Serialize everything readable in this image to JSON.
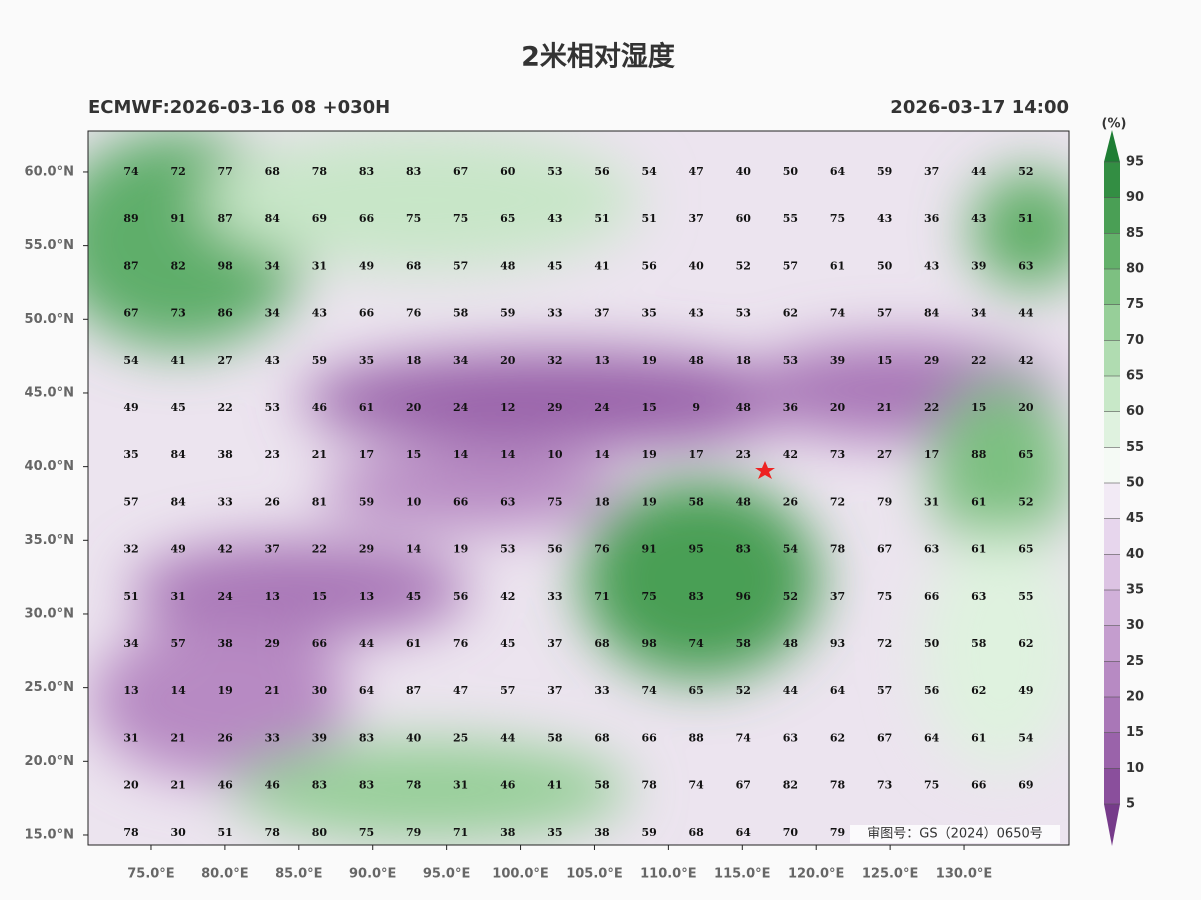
{
  "header": {
    "title": "2米相对湿度",
    "left": "ECMWF:2026-03-16 08 +030H",
    "right": "2026-03-17 14:00"
  },
  "map": {
    "xlim": [
      70.74,
      137.1
    ],
    "ylim": [
      14.32,
      62.78
    ],
    "xticks": [
      {
        "value": 75,
        "label": "75.0°E"
      },
      {
        "value": 80,
        "label": "80.0°E"
      },
      {
        "value": 85,
        "label": "85.0°E"
      },
      {
        "value": 90,
        "label": "90.0°E"
      },
      {
        "value": 95,
        "label": "95.0°E"
      },
      {
        "value": 100,
        "label": "100.0°E"
      },
      {
        "value": 105,
        "label": "105.0°E"
      },
      {
        "value": 110,
        "label": "110.0°E"
      },
      {
        "value": 115,
        "label": "115.0°E"
      },
      {
        "value": 120,
        "label": "120.0°E"
      },
      {
        "value": 125,
        "label": "125.0°E"
      },
      {
        "value": 130,
        "label": "130.0°E"
      }
    ],
    "yticks": [
      {
        "value": 60,
        "label": "60.0°N"
      },
      {
        "value": 55,
        "label": "55.0°N"
      },
      {
        "value": 50,
        "label": "50.0°N"
      },
      {
        "value": 45,
        "label": "45.0°N"
      },
      {
        "value": 40,
        "label": "40.0°N"
      },
      {
        "value": 35,
        "label": "35.0°N"
      },
      {
        "value": 30,
        "label": "30.0°N"
      },
      {
        "value": 25,
        "label": "25.0°N"
      },
      {
        "value": 20,
        "label": "20.0°N"
      },
      {
        "value": 15,
        "label": "15.0°N"
      }
    ],
    "grid": [
      [
        74,
        72,
        77,
        68,
        78,
        83,
        83,
        67,
        60,
        53,
        56,
        54,
        47,
        40,
        50,
        64,
        59,
        37,
        44,
        52
      ],
      [
        89,
        91,
        87,
        84,
        69,
        66,
        75,
        75,
        65,
        43,
        51,
        51,
        37,
        60,
        55,
        75,
        43,
        36,
        43,
        51
      ],
      [
        87,
        82,
        98,
        34,
        31,
        49,
        68,
        57,
        48,
        45,
        41,
        56,
        40,
        52,
        57,
        61,
        50,
        43,
        39,
        63
      ],
      [
        67,
        73,
        86,
        34,
        43,
        66,
        76,
        58,
        59,
        33,
        37,
        35,
        43,
        53,
        62,
        74,
        57,
        84,
        34,
        44
      ],
      [
        54,
        41,
        27,
        43,
        59,
        35,
        18,
        34,
        20,
        32,
        13,
        19,
        48,
        18,
        53,
        39,
        15,
        29,
        22,
        42
      ],
      [
        49,
        45,
        22,
        53,
        46,
        61,
        20,
        24,
        12,
        29,
        24,
        15,
        9,
        48,
        36,
        20,
        21,
        22,
        15,
        20
      ],
      [
        35,
        84,
        38,
        23,
        21,
        17,
        15,
        14,
        14,
        10,
        14,
        19,
        17,
        23,
        42,
        73,
        27,
        17,
        88,
        65
      ],
      [
        57,
        84,
        33,
        26,
        81,
        59,
        10,
        66,
        63,
        75,
        18,
        19,
        58,
        48,
        26,
        72,
        79,
        31,
        61,
        52
      ],
      [
        32,
        49,
        42,
        37,
        22,
        29,
        14,
        19,
        53,
        56,
        76,
        91,
        95,
        83,
        54,
        78,
        67,
        63,
        61,
        65
      ],
      [
        51,
        31,
        24,
        13,
        15,
        13,
        45,
        56,
        42,
        33,
        71,
        75,
        83,
        96,
        52,
        37,
        75,
        66,
        63,
        55
      ],
      [
        34,
        57,
        38,
        29,
        66,
        44,
        61,
        76,
        45,
        37,
        68,
        98,
        74,
        58,
        48,
        93,
        72,
        50,
        58,
        62
      ],
      [
        13,
        14,
        19,
        21,
        30,
        64,
        87,
        47,
        57,
        37,
        33,
        74,
        65,
        52,
        44,
        64,
        57,
        56,
        62,
        49
      ],
      [
        31,
        21,
        26,
        33,
        39,
        83,
        40,
        25,
        44,
        58,
        68,
        66,
        88,
        74,
        63,
        62,
        67,
        64,
        61,
        54
      ],
      [
        20,
        21,
        46,
        46,
        83,
        83,
        78,
        31,
        46,
        41,
        58,
        78,
        74,
        67,
        82,
        78,
        73,
        75,
        66,
        69
      ],
      [
        78,
        30,
        51,
        78,
        80,
        75,
        79,
        71,
        38,
        35,
        38,
        59,
        68,
        64,
        70,
        79,
        null,
        null,
        null,
        null
      ]
    ]
  },
  "colorbar": {
    "unit": "(%)",
    "ticks": [
      5,
      10,
      15,
      20,
      25,
      30,
      35,
      40,
      45,
      50,
      55,
      60,
      65,
      70,
      75,
      80,
      85,
      90,
      95
    ],
    "colors": [
      "#763b8a",
      "#8a4f9c",
      "#9a63aa",
      "#a977b7",
      "#b78ac3",
      "#c49dce",
      "#d0b0d9",
      "#dcc3e3",
      "#e7d6ed",
      "#f2eaf5",
      "#f5faf5",
      "#dff2df",
      "#c8e8c8",
      "#b0dcb1",
      "#97cf99",
      "#7dc081",
      "#63b06a",
      "#4a9f55",
      "#338e43",
      "#1e7d34"
    ]
  },
  "watermark": "审图号：GS（2024）0650号"
}
